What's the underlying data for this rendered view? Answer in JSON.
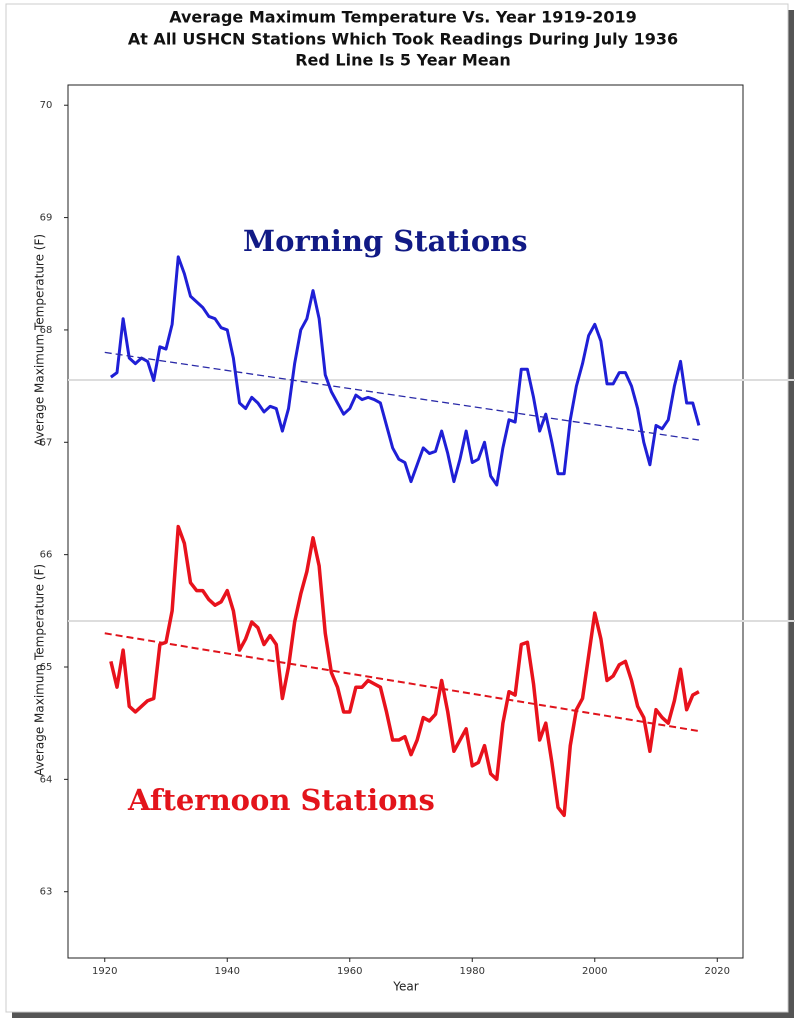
{
  "chart_data": {
    "type": "line",
    "title": [
      "Average Maximum Temperature Vs. Year 1919-2019",
      "At All USHCN Stations Which Took Readings During July 1936",
      "Red Line Is 5 Year Mean"
    ],
    "xlabel": "Year",
    "ylabel": "Average Maximum Temperature (F)",
    "annotations": [
      {
        "text": "Morning Stations",
        "color": "#111a85"
      },
      {
        "text": "Afternoon Stations",
        "color": "#e3141b"
      }
    ],
    "x": [
      1921,
      1922,
      1923,
      1924,
      1925,
      1926,
      1927,
      1928,
      1929,
      1930,
      1931,
      1932,
      1933,
      1934,
      1935,
      1936,
      1937,
      1938,
      1939,
      1940,
      1941,
      1942,
      1943,
      1944,
      1945,
      1946,
      1947,
      1948,
      1949,
      1950,
      1951,
      1952,
      1953,
      1954,
      1955,
      1956,
      1957,
      1958,
      1959,
      1960,
      1961,
      1962,
      1963,
      1964,
      1965,
      1966,
      1967,
      1968,
      1969,
      1970,
      1971,
      1972,
      1973,
      1974,
      1975,
      1976,
      1977,
      1978,
      1979,
      1980,
      1981,
      1982,
      1983,
      1984,
      1985,
      1986,
      1987,
      1988,
      1989,
      1990,
      1991,
      1992,
      1993,
      1994,
      1995,
      1996,
      1997,
      1998,
      1999,
      2000,
      2001,
      2002,
      2003,
      2004,
      2005,
      2006,
      2007,
      2008,
      2009,
      2010,
      2011,
      2012,
      2013,
      2014,
      2015,
      2016,
      2017
    ],
    "series": [
      {
        "color": "#1f1fd6",
        "width": 3,
        "values": [
          67.58,
          67.62,
          68.1,
          67.75,
          67.7,
          67.75,
          67.72,
          67.55,
          67.85,
          67.83,
          68.05,
          68.65,
          68.5,
          68.3,
          68.25,
          68.2,
          68.12,
          68.1,
          68.02,
          68.0,
          67.75,
          67.35,
          67.3,
          67.4,
          67.35,
          67.27,
          67.32,
          67.3,
          67.1,
          67.3,
          67.7,
          68.0,
          68.1,
          68.35,
          68.1,
          67.6,
          67.45,
          67.35,
          67.25,
          67.3,
          67.42,
          67.38,
          67.4,
          67.38,
          67.35,
          67.15,
          66.95,
          66.85,
          66.82,
          66.65,
          66.8,
          66.95,
          66.9,
          66.92,
          67.1,
          66.9,
          66.65,
          66.85,
          67.1,
          66.82,
          66.85,
          67.0,
          66.7,
          66.62,
          66.95,
          67.2,
          67.18,
          67.65,
          67.65,
          67.4,
          67.1,
          67.25,
          67.0,
          66.72,
          66.72,
          67.2,
          67.5,
          67.7,
          67.95,
          68.05,
          67.9,
          67.52,
          67.52,
          67.62,
          67.62,
          67.5,
          67.3,
          67.0,
          66.8,
          67.15,
          67.12,
          67.2,
          67.5,
          67.72,
          67.35,
          67.35,
          67.15
        ]
      },
      {
        "color": "#e8121c",
        "width": 3.5,
        "values": [
          65.05,
          64.82,
          65.15,
          64.65,
          64.6,
          64.65,
          64.7,
          64.72,
          65.2,
          65.22,
          65.5,
          66.25,
          66.1,
          65.75,
          65.68,
          65.68,
          65.6,
          65.55,
          65.58,
          65.68,
          65.5,
          65.15,
          65.25,
          65.4,
          65.35,
          65.2,
          65.28,
          65.2,
          64.72,
          65.0,
          65.4,
          65.65,
          65.85,
          66.15,
          65.9,
          65.3,
          64.95,
          64.82,
          64.6,
          64.6,
          64.82,
          64.82,
          64.88,
          64.85,
          64.82,
          64.6,
          64.35,
          64.35,
          64.38,
          64.22,
          64.35,
          64.55,
          64.52,
          64.58,
          64.88,
          64.6,
          64.25,
          64.35,
          64.45,
          64.12,
          64.15,
          64.3,
          64.05,
          64.0,
          64.5,
          64.78,
          64.75,
          65.2,
          65.22,
          64.85,
          64.35,
          64.5,
          64.15,
          63.75,
          63.68,
          64.3,
          64.62,
          64.72,
          65.1,
          65.48,
          65.25,
          64.88,
          64.92,
          65.02,
          65.05,
          64.88,
          64.65,
          64.55,
          64.25,
          64.62,
          64.55,
          64.5,
          64.7,
          64.98,
          64.62,
          64.75,
          64.78
        ]
      },
      {
        "color": "#2a2aa8",
        "width": 1.3,
        "dashed": true,
        "x": [
          1920,
          2017
        ],
        "values": [
          67.8,
          67.02
        ]
      },
      {
        "color": "#e0141c",
        "width": 2,
        "dashed": true,
        "x": [
          1920,
          2017
        ],
        "values": [
          65.3,
          64.43
        ]
      }
    ],
    "xlim": [
      1914,
      2024.2
    ],
    "ylim": [
      62.41,
      70.18
    ],
    "xticks": [
      1920,
      1940,
      1960,
      1980,
      2000,
      2020
    ],
    "yticks": [
      63,
      64,
      65,
      66,
      67,
      68,
      69,
      70
    ]
  }
}
